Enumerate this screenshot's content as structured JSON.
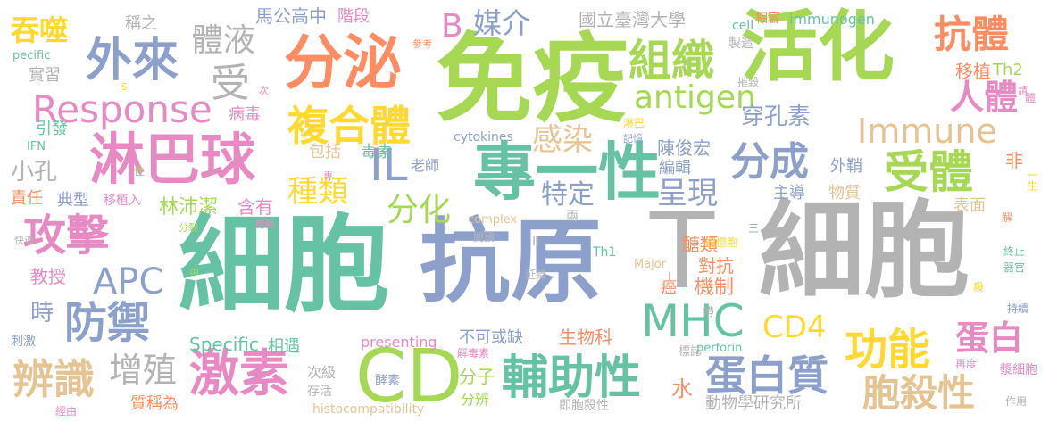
{
  "palette": {
    "green": "#66c2a5",
    "orange": "#fc8d62",
    "blue": "#8da0cb",
    "pink": "#e78ac3",
    "lime": "#a6d854",
    "yellow": "#ffd92f",
    "tan": "#e5c494",
    "gray": "#b3b3b3"
  },
  "words": [
    {
      "id": "xibao",
      "text": "細胞",
      "color": "#66c2a5"
    },
    {
      "id": "t",
      "text": "T",
      "color": "#b3b3b3"
    },
    {
      "id": "xibao2",
      "text": "細胞",
      "color": "#b3b3b3"
    },
    {
      "id": "kangyuan",
      "text": "抗原",
      "color": "#8da0cb"
    },
    {
      "id": "mianyi",
      "text": "免疫",
      "color": "#a6d854"
    },
    {
      "id": "zhuanyixing",
      "text": "專一性",
      "color": "#66c2a5"
    },
    {
      "id": "huohua",
      "text": "活化",
      "color": "#a6d854"
    },
    {
      "id": "fenmi",
      "text": "分泌",
      "color": "#fc8d62"
    },
    {
      "id": "linbaqiu",
      "text": "淋巴球",
      "color": "#e78ac3"
    },
    {
      "id": "cd",
      "text": "CD",
      "color": "#a6d854"
    },
    {
      "id": "jisu",
      "text": "激素",
      "color": "#e78ac3"
    },
    {
      "id": "fuhexing",
      "text": "輔助性",
      "color": "#66c2a5"
    },
    {
      "id": "fuheti",
      "text": "複合體",
      "color": "#ffd92f"
    },
    {
      "id": "gongji",
      "text": "攻擊",
      "color": "#e78ac3"
    },
    {
      "id": "fangyu",
      "text": "防禦",
      "color": "#8da0cb"
    },
    {
      "id": "mhc",
      "text": "MHC",
      "color": "#66c2a5"
    },
    {
      "id": "danbaizhi",
      "text": "蛋白質",
      "color": "#8da0cb"
    },
    {
      "id": "gongneng",
      "text": "功能",
      "color": "#ffd92f"
    },
    {
      "id": "baoshaxing",
      "text": "胞殺性",
      "color": "#e5c494"
    },
    {
      "id": "shouti",
      "text": "受體",
      "color": "#a6d854"
    },
    {
      "id": "kangti",
      "text": "抗體",
      "color": "#fc8d62"
    },
    {
      "id": "renti",
      "text": "人體",
      "color": "#e78ac3"
    },
    {
      "id": "zuzhi",
      "text": "組織",
      "color": "#a6d854"
    },
    {
      "id": "fencheng",
      "text": "分成",
      "color": "#8da0cb"
    },
    {
      "id": "immune",
      "text": "Immune",
      "color": "#e5c494"
    },
    {
      "id": "response",
      "text": "Response",
      "color": "#e78ac3"
    },
    {
      "id": "antigen",
      "text": "antigen",
      "color": "#a6d854"
    },
    {
      "id": "bianshi",
      "text": "辨識",
      "color": "#e5c494"
    },
    {
      "id": "zengzhi",
      "text": "增殖",
      "color": "#b3b3b3"
    },
    {
      "id": "fenhua",
      "text": "分化",
      "color": "#a6d854"
    },
    {
      "id": "zhonglei",
      "text": "種類",
      "color": "#ffd92f"
    },
    {
      "id": "ganran",
      "text": "感染",
      "color": "#e5c494"
    },
    {
      "id": "chengxian",
      "text": "呈現",
      "color": "#8da0cb"
    },
    {
      "id": "teding",
      "text": "特定",
      "color": "#8da0cb"
    },
    {
      "id": "tiye",
      "text": "體液",
      "color": "#b3b3b3"
    },
    {
      "id": "shou",
      "text": "受",
      "color": "#b3b3b3"
    },
    {
      "id": "wailai",
      "text": "外來",
      "color": "#8da0cb"
    },
    {
      "id": "tunshi",
      "text": "吞噬",
      "color": "#ffd92f"
    },
    {
      "id": "il",
      "text": "IL",
      "color": "#8da0cb"
    },
    {
      "id": "apc",
      "text": "APC",
      "color": "#8da0cb"
    },
    {
      "id": "cd4",
      "text": "CD4",
      "color": "#ffd92f"
    },
    {
      "id": "danbai",
      "text": "蛋白",
      "color": "#e78ac3"
    },
    {
      "id": "b",
      "text": "B",
      "color": "#e78ac3"
    },
    {
      "id": "meijie",
      "text": "媒介",
      "color": "#8da0cb"
    },
    {
      "id": "chuankongsu",
      "text": "穿孔素",
      "color": "#8da0cb"
    },
    {
      "id": "yizhi",
      "text": "移植",
      "color": "#fc8d62"
    },
    {
      "id": "th2",
      "text": "Th2",
      "color": "#a6d854"
    },
    {
      "id": "specific",
      "text": "Specific",
      "color": "#66c2a5"
    },
    {
      "id": "presenting",
      "text": "presenting",
      "color": "#e78ac3"
    },
    {
      "id": "histo",
      "text": "histocompatibility",
      "color": "#e5c494"
    },
    {
      "id": "immunogen",
      "text": "immunogen",
      "color": "#66c2a5"
    },
    {
      "id": "cytokines",
      "text": "cytokines",
      "color": "#8da0cb"
    },
    {
      "id": "complex",
      "text": "complex",
      "color": "#e5c494"
    },
    {
      "id": "major",
      "text": "Major",
      "color": "#e5c494"
    },
    {
      "id": "th1",
      "text": "Th1",
      "color": "#66c2a5"
    },
    {
      "id": "cell",
      "text": "cell",
      "color": "#66c2a5"
    },
    {
      "id": "perforin",
      "text": "perforin",
      "color": "#66c2a5"
    },
    {
      "id": "ifn",
      "text": "IFN",
      "color": "#66c2a5"
    },
    {
      "id": "pecific",
      "text": "pecific",
      "color": "#66c2a5"
    },
    {
      "id": "guoli",
      "text": "國立臺灣大學",
      "color": "#b3b3b3"
    },
    {
      "id": "magong",
      "text": "馬公高中",
      "color": "#8da0cb"
    },
    {
      "id": "jieduan",
      "text": "階段",
      "color": "#e78ac3"
    },
    {
      "id": "chengzhi",
      "text": "稱之",
      "color": "#b3b3b3"
    },
    {
      "id": "shixi",
      "text": "實習",
      "color": "#b3b3b3"
    },
    {
      "id": "bingdu",
      "text": "病毒",
      "color": "#e78ac3"
    },
    {
      "id": "yinfa",
      "text": "引發",
      "color": "#66c2a5"
    },
    {
      "id": "xiaokong",
      "text": "小孔",
      "color": "#b3b3b3"
    },
    {
      "id": "zeren",
      "text": "責任",
      "color": "#fc8d62"
    },
    {
      "id": "dianxing",
      "text": "典型",
      "color": "#8da0cb"
    },
    {
      "id": "yizhiru",
      "text": "移植入",
      "color": "#e78ac3"
    },
    {
      "id": "linpeijie",
      "text": "林沛潔",
      "color": "#a6d854"
    },
    {
      "id": "hanyou",
      "text": "含有",
      "color": "#e78ac3"
    },
    {
      "id": "jiaoshou",
      "text": "教授",
      "color": "#e78ac3"
    },
    {
      "id": "shi",
      "text": "時",
      "color": "#8da0cb"
    },
    {
      "id": "cijiv",
      "text": "刺激",
      "color": "#8da0cb"
    },
    {
      "id": "jingyou",
      "text": "經由",
      "color": "#e78ac3"
    },
    {
      "id": "zhichengwei",
      "text": "質稱為",
      "color": "#fc8d62"
    },
    {
      "id": "cunhuo",
      "text": "存活",
      "color": "#b3b3b3"
    },
    {
      "id": "ciji",
      "text": "次級",
      "color": "#b3b3b3"
    },
    {
      "id": "xiangyu",
      "text": "相遇",
      "color": "#66c2a5"
    },
    {
      "id": "jiesu",
      "text": "酵素",
      "color": "#8da0cb"
    },
    {
      "id": "dusu",
      "text": "毒素",
      "color": "#66c2a5"
    },
    {
      "id": "baokuo",
      "text": "包括",
      "color": "#e5c494"
    },
    {
      "id": "laoshi",
      "text": "老師",
      "color": "#8da0cb"
    },
    {
      "id": "chenjunhong",
      "text": "陳俊宏",
      "color": "#8da0cb"
    },
    {
      "id": "bianji",
      "text": "編輯",
      "color": "#8da0cb"
    },
    {
      "id": "waiqiao",
      "text": "外鞘",
      "color": "#8da0cb"
    },
    {
      "id": "zhudao",
      "text": "主導",
      "color": "#8da0cb"
    },
    {
      "id": "wuzhi",
      "text": "物質",
      "color": "#e5c494"
    },
    {
      "id": "biaomian",
      "text": "表面",
      "color": "#e5c494"
    },
    {
      "id": "fei",
      "text": "非",
      "color": "#fc8d62"
    },
    {
      "id": "tanglei",
      "text": "醣類",
      "color": "#fc8d62"
    },
    {
      "id": "duikang",
      "text": "對抗",
      "color": "#fc8d62"
    },
    {
      "id": "jizhi",
      "text": "機制",
      "color": "#fc8d62"
    },
    {
      "id": "ai",
      "text": "癌",
      "color": "#fc8d62"
    },
    {
      "id": "shengwuke",
      "text": "生物科",
      "color": "#fc8d62"
    },
    {
      "id": "bukehuoque",
      "text": "不可或缺",
      "color": "#8da0cb"
    },
    {
      "id": "fenzi",
      "text": "分子",
      "color": "#a6d854"
    },
    {
      "id": "fenbian",
      "text": "分辨",
      "color": "#a6d854"
    },
    {
      "id": "shui",
      "text": "水",
      "color": "#fc8d62"
    },
    {
      "id": "dongwu",
      "text": "動物學研究所",
      "color": "#b3b3b3"
    },
    {
      "id": "jibaoshaxing",
      "text": "即胞殺性",
      "color": "#b3b3b3"
    },
    {
      "id": "jiedusu",
      "text": "解毒素",
      "color": "#e78ac3"
    },
    {
      "id": "biaozhi",
      "text": "標誌",
      "color": "#b3b3b3"
    },
    {
      "id": "yanxu",
      "text": "延續",
      "color": "#b3b3b3"
    },
    {
      "id": "yuedu",
      "text": "閱讀",
      "color": "#b3b3b3"
    },
    {
      "id": "dai",
      "text": "帶",
      "color": "#b3b3b3"
    },
    {
      "id": "jiyibao",
      "text": "記憶胞",
      "color": "#ffd92f"
    },
    {
      "id": "xiangrong",
      "text": "相容",
      "color": "#fc8d62"
    },
    {
      "id": "zhizao",
      "text": "製造",
      "color": "#b3b3b3"
    },
    {
      "id": "cankao",
      "text": "參考",
      "color": "#fc8d62"
    },
    {
      "id": "cuihui",
      "text": "摧毀",
      "color": "#b3b3b3"
    },
    {
      "id": "qing",
      "text": "請",
      "color": "#e78ac3"
    },
    {
      "id": "ci",
      "text": "次",
      "color": "#e78ac3"
    },
    {
      "id": "xing",
      "text": "性",
      "color": "#a6d854"
    },
    {
      "id": "fenlie",
      "text": "分裂",
      "color": "#a6d854"
    },
    {
      "id": "baosha",
      "text": "胞殺",
      "color": "#e78ac3"
    },
    {
      "id": "kuaisu",
      "text": "快速",
      "color": "#b3b3b3"
    },
    {
      "id": "zhong",
      "text": "中",
      "color": "#a6d854"
    },
    {
      "id": "zhongzhi",
      "text": "終止",
      "color": "#66c2a5"
    },
    {
      "id": "qiguan",
      "text": "器官",
      "color": "#66c2a5"
    },
    {
      "id": "chixu",
      "text": "持續",
      "color": "#8da0cb"
    },
    {
      "id": "zaidu",
      "text": "再度",
      "color": "#e78ac3"
    },
    {
      "id": "jiangxibao",
      "text": "漿細胞",
      "color": "#e78ac3"
    },
    {
      "id": "zuoyong",
      "text": "作用",
      "color": "#b3b3b3"
    },
    {
      "id": "yisheng",
      "text": "一生",
      "color": "#ffd92f"
    },
    {
      "id": "jie",
      "text": "解",
      "color": "#fc8d62"
    },
    {
      "id": "sha",
      "text": "殺",
      "color": "#ffd92f"
    },
    {
      "id": "ti",
      "text": "體",
      "color": "#e78ac3"
    },
    {
      "id": "s",
      "text": "S",
      "color": "#ffd92f"
    },
    {
      "id": "ii",
      "text": "II",
      "color": "#b3b3b3"
    },
    {
      "id": "i",
      "text": "I",
      "color": "#b3b3b3"
    },
    {
      "id": "san",
      "text": "三",
      "color": "#8da0cb"
    },
    {
      "id": "liang",
      "text": "兩",
      "color": "#b3b3b3"
    },
    {
      "id": "linba",
      "text": "淋巴",
      "color": "#ffd92f"
    },
    {
      "id": "jiyi",
      "text": "記憶",
      "color": "#8da0cb"
    },
    {
      "id": "zhuan",
      "text": "專",
      "color": "#e78ac3"
    }
  ]
}
